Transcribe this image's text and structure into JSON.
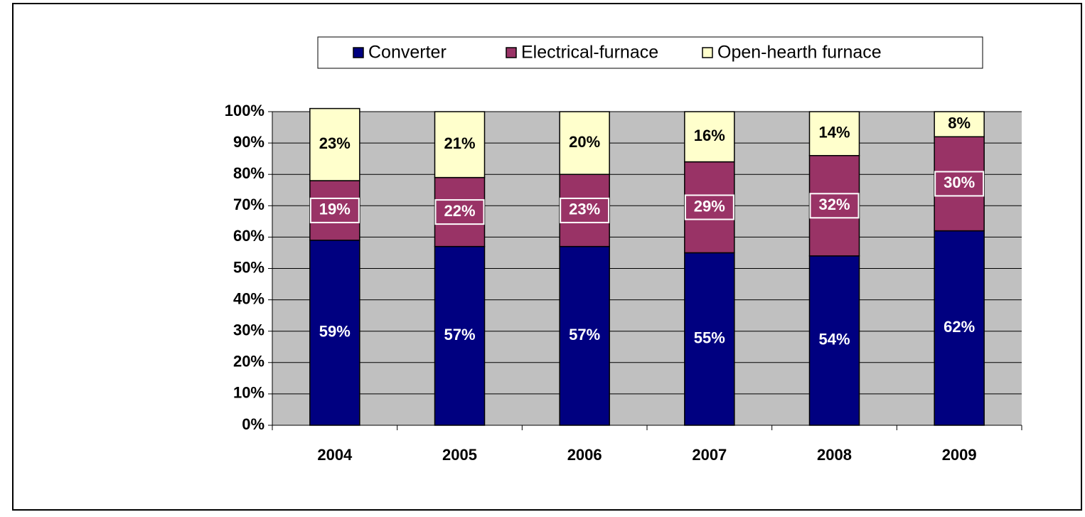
{
  "chart_data": {
    "type": "stacked_bar",
    "categories": [
      "2004",
      "2005",
      "2006",
      "2007",
      "2008",
      "2009"
    ],
    "series": [
      {
        "name": "Converter",
        "color": "#000080",
        "values": [
          59,
          57,
          57,
          55,
          54,
          62
        ],
        "value_labels": [
          "59%",
          "57%",
          "57%",
          "55%",
          "54%",
          "62%"
        ]
      },
      {
        "name": "Electrical-furnace",
        "color": "#993366",
        "values": [
          19,
          22,
          23,
          29,
          32,
          30
        ],
        "value_labels": [
          "19%",
          "22%",
          "23%",
          "29%",
          "32%",
          "30%"
        ]
      },
      {
        "name": "Open-hearth furnace",
        "color": "#ffffcc",
        "values": [
          23,
          21,
          20,
          16,
          14,
          8
        ],
        "value_labels": [
          "23%",
          "21%",
          "20%",
          "16%",
          "14%",
          "8%"
        ]
      }
    ],
    "ylim": [
      0,
      100
    ],
    "yticks": [
      {
        "value": 0,
        "label": "0%"
      },
      {
        "value": 10,
        "label": "10%"
      },
      {
        "value": 20,
        "label": "20%"
      },
      {
        "value": 30,
        "label": "30%"
      },
      {
        "value": 40,
        "label": "40%"
      },
      {
        "value": 50,
        "label": "50%"
      },
      {
        "value": 60,
        "label": "60%"
      },
      {
        "value": 70,
        "label": "70%"
      },
      {
        "value": 80,
        "label": "80%"
      },
      {
        "value": 90,
        "label": "90%"
      },
      {
        "value": 100,
        "label": "100%"
      }
    ],
    "grid": true,
    "legend": "top"
  }
}
